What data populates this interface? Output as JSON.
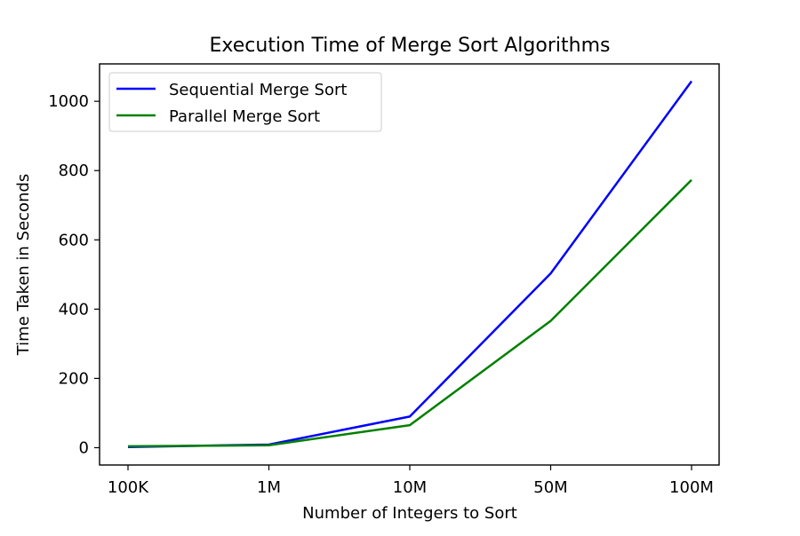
{
  "chart_data": {
    "type": "line",
    "title": "Execution Time of Merge Sort Algorithms",
    "xlabel": "Number of Integers to Sort",
    "ylabel": "Time Taken in Seconds",
    "categories": [
      "100K",
      "1M",
      "10M",
      "50M",
      "100M"
    ],
    "series": [
      {
        "name": "Sequential Merge Sort",
        "color": "#0000ff",
        "values": [
          2,
          9,
          90,
          503,
          1058
        ]
      },
      {
        "name": "Parallel Merge Sort",
        "color": "#008000",
        "values": [
          4,
          7,
          65,
          366,
          773
        ]
      }
    ],
    "ylim": [
      -50,
      1108
    ],
    "yticks": [
      0,
      200,
      400,
      600,
      800,
      1000
    ],
    "grid": false,
    "legend_position": "upper-left"
  }
}
